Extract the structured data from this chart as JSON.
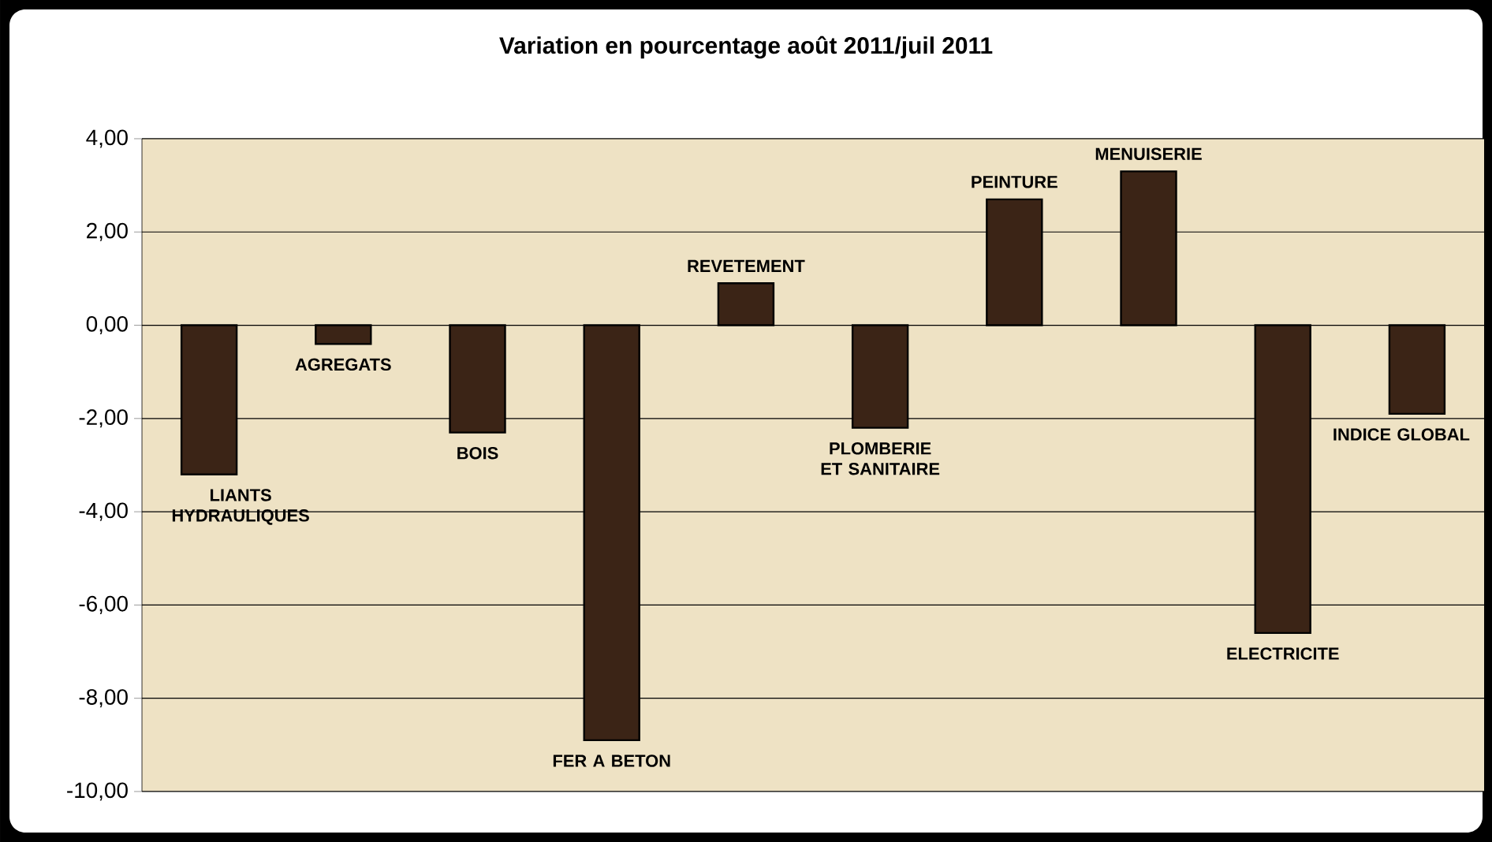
{
  "chart_data": {
    "type": "bar",
    "title": "Variation  en pourcentage août 2011/juil 2011",
    "categories": [
      "LIANTS HYDRAULIQUES",
      "AGREGATS",
      "BOIS",
      "FER A BETON",
      "REVETEMENT",
      "PLOMBERIE ET SANITAIRE",
      "PEINTURE",
      "MENUISERIE",
      "ELECTRICITE",
      "INDICE GLOBAL"
    ],
    "values": [
      -3.2,
      -0.4,
      -2.3,
      -8.9,
      0.9,
      -2.2,
      2.7,
      3.3,
      -6.6,
      -1.9
    ],
    "color": "#3b2416",
    "ylim": [
      -10,
      4
    ],
    "yticks": [
      {
        "value": -10,
        "label": "-10,00"
      },
      {
        "value": -8,
        "label": "-8,00"
      },
      {
        "value": -6,
        "label": "-6,00"
      },
      {
        "value": -4,
        "label": "-4,00"
      },
      {
        "value": -2,
        "label": "-2,00"
      },
      {
        "value": 0,
        "label": "0,00"
      },
      {
        "value": 2,
        "label": "2,00"
      },
      {
        "value": 4,
        "label": "4,00"
      }
    ],
    "grid": "y",
    "tick_labels": "y"
  }
}
